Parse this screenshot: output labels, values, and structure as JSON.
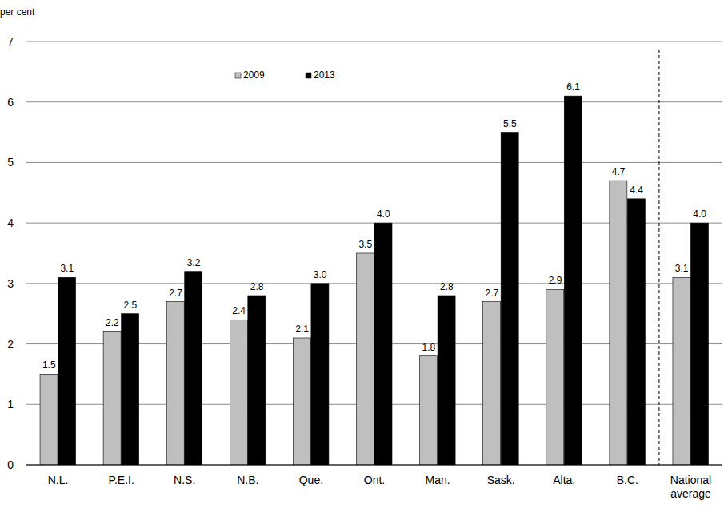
{
  "chart_data": {
    "type": "bar",
    "y_label": "per cent",
    "categories": [
      "N.L.",
      "P.E.I.",
      "N.S.",
      "N.B.",
      "Que.",
      "Ont.",
      "Man.",
      "Sask.",
      "Alta.",
      "B.C.",
      "National average"
    ],
    "series": [
      {
        "name": "2009",
        "color": "#bfbfbf",
        "values": [
          1.5,
          2.2,
          2.7,
          2.4,
          2.1,
          3.5,
          1.8,
          2.7,
          2.9,
          4.7,
          3.1
        ],
        "value_labels": [
          "1.5",
          "2.2",
          "2.7",
          "2.4",
          "2.1",
          "3.5",
          "1.8",
          "2.7",
          "2.9",
          "4.7",
          "3.1"
        ]
      },
      {
        "name": "2013",
        "color": "#000000",
        "values": [
          3.1,
          2.5,
          3.2,
          2.8,
          3.0,
          4.0,
          2.8,
          5.5,
          6.1,
          4.4,
          4.0
        ],
        "value_labels": [
          "3.1",
          "2.5",
          "3.2",
          "2.8",
          "3.0",
          "4.0",
          "2.8",
          "5.5",
          "6.1",
          "4.4",
          "4.0"
        ]
      }
    ],
    "ylim": [
      0,
      7
    ],
    "yticks": [
      0,
      1,
      2,
      3,
      4,
      5,
      6,
      7
    ],
    "grid": true,
    "legend": "top",
    "data_labels": true
  }
}
